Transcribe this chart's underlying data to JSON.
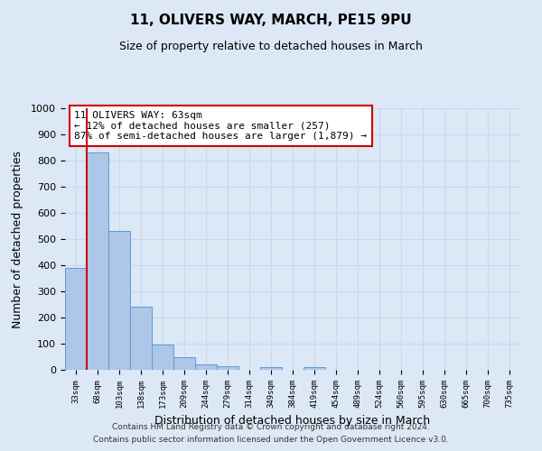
{
  "title": "11, OLIVERS WAY, MARCH, PE15 9PU",
  "subtitle": "Size of property relative to detached houses in March",
  "xlabel": "Distribution of detached houses by size in March",
  "ylabel": "Number of detached properties",
  "bar_labels": [
    "33sqm",
    "68sqm",
    "103sqm",
    "138sqm",
    "173sqm",
    "209sqm",
    "244sqm",
    "279sqm",
    "314sqm",
    "349sqm",
    "384sqm",
    "419sqm",
    "454sqm",
    "489sqm",
    "524sqm",
    "560sqm",
    "595sqm",
    "630sqm",
    "665sqm",
    "700sqm",
    "735sqm"
  ],
  "bar_values": [
    390,
    830,
    530,
    240,
    95,
    50,
    20,
    15,
    0,
    10,
    0,
    10,
    0,
    0,
    0,
    0,
    0,
    0,
    0,
    0,
    0
  ],
  "bar_color": "#aec6e8",
  "bar_edgecolor": "#5b9bd5",
  "vline_color": "#cc0000",
  "annotation_line1": "11 OLIVERS WAY: 63sqm",
  "annotation_line2": "← 12% of detached houses are smaller (257)",
  "annotation_line3": "87% of semi-detached houses are larger (1,879) →",
  "annotation_box_color": "#ffffff",
  "annotation_box_edgecolor": "#cc0000",
  "ylim": [
    0,
    1000
  ],
  "yticks": [
    0,
    100,
    200,
    300,
    400,
    500,
    600,
    700,
    800,
    900,
    1000
  ],
  "grid_color": "#c8d8ec",
  "background_color": "#dce8f5",
  "footer_line1": "Contains HM Land Registry data © Crown copyright and database right 2024.",
  "footer_line2": "Contains public sector information licensed under the Open Government Licence v3.0."
}
